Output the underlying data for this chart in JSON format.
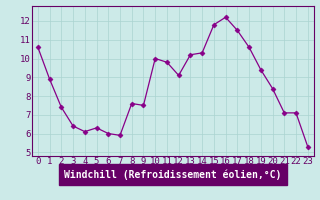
{
  "x": [
    0,
    1,
    2,
    3,
    4,
    5,
    6,
    7,
    8,
    9,
    10,
    11,
    12,
    13,
    14,
    15,
    16,
    17,
    18,
    19,
    20,
    21,
    22,
    23
  ],
  "y": [
    10.6,
    8.9,
    7.4,
    6.4,
    6.1,
    6.3,
    6.0,
    5.9,
    7.6,
    7.5,
    10.0,
    9.8,
    9.1,
    10.2,
    10.3,
    11.8,
    12.2,
    11.5,
    10.6,
    9.4,
    8.4,
    7.1,
    7.1,
    5.3
  ],
  "line_color": "#880088",
  "marker": "D",
  "markersize": 2.5,
  "linewidth": 0.9,
  "bg_color": "#cceae8",
  "grid_color": "#aad4d0",
  "xlabel": "Windchill (Refroidissement éolien,°C)",
  "xlabel_fontsize": 7,
  "ylabel_ticks": [
    5,
    6,
    7,
    8,
    9,
    10,
    11,
    12
  ],
  "xlim": [
    -0.5,
    23.5
  ],
  "ylim": [
    4.8,
    12.8
  ],
  "tick_fontsize": 6.5,
  "axis_color": "#660066",
  "spine_color": "#660066"
}
